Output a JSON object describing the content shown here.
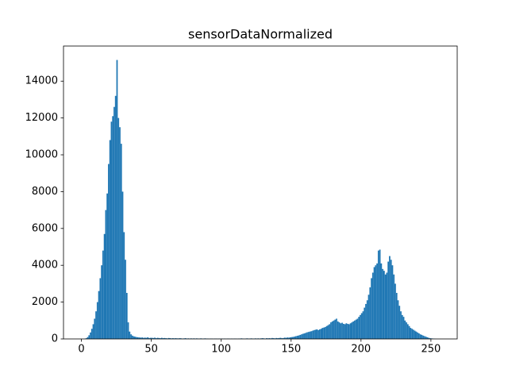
{
  "chart_data": {
    "type": "histogram",
    "title": "sensorDataNormalized",
    "color": "#1f77b4",
    "bins": [
      0,
      1,
      2,
      3,
      4,
      5,
      6,
      7,
      8,
      9,
      10,
      11,
      12,
      13,
      14,
      15,
      16,
      17,
      18,
      19,
      20,
      21,
      22,
      23,
      24,
      25,
      26,
      27,
      28,
      29,
      30,
      31,
      32,
      33,
      34,
      35,
      36,
      37,
      38,
      39,
      40,
      41,
      42,
      43,
      44,
      45,
      46,
      47,
      48,
      49,
      50,
      51,
      52,
      53,
      54,
      55,
      56,
      57,
      58,
      59,
      60,
      61,
      62,
      63,
      64,
      65,
      66,
      67,
      68,
      69,
      70,
      71,
      72,
      73,
      74,
      75,
      76,
      77,
      78,
      79,
      80,
      81,
      82,
      83,
      84,
      85,
      86,
      87,
      88,
      89,
      90,
      91,
      92,
      93,
      94,
      95,
      96,
      97,
      98,
      99,
      100,
      101,
      102,
      103,
      104,
      105,
      106,
      107,
      108,
      109,
      110,
      111,
      112,
      113,
      114,
      115,
      116,
      117,
      118,
      119,
      120,
      121,
      122,
      123,
      124,
      125,
      126,
      127,
      128,
      129,
      130,
      131,
      132,
      133,
      134,
      135,
      136,
      137,
      138,
      139,
      140,
      141,
      142,
      143,
      144,
      145,
      146,
      147,
      148,
      149,
      150,
      151,
      152,
      153,
      154,
      155,
      156,
      157,
      158,
      159,
      160,
      161,
      162,
      163,
      164,
      165,
      166,
      167,
      168,
      169,
      170,
      171,
      172,
      173,
      174,
      175,
      176,
      177,
      178,
      179,
      180,
      181,
      182,
      183,
      184,
      185,
      186,
      187,
      188,
      189,
      190,
      191,
      192,
      193,
      194,
      195,
      196,
      197,
      198,
      199,
      200,
      201,
      202,
      203,
      204,
      205,
      206,
      207,
      208,
      209,
      210,
      211,
      212,
      213,
      214,
      215,
      216,
      217,
      218,
      219,
      220,
      221,
      222,
      223,
      224,
      225,
      226,
      227,
      228,
      229,
      230,
      231,
      232,
      233,
      234,
      235,
      236,
      237,
      238,
      239,
      240,
      241,
      242,
      243,
      244,
      245,
      246,
      247,
      248,
      249,
      250,
      251,
      252,
      253,
      254,
      255,
      256
    ],
    "values": [
      0,
      0,
      10,
      40,
      100,
      200,
      350,
      550,
      800,
      1100,
      1500,
      2000,
      2600,
      3300,
      4000,
      4800,
      5700,
      7000,
      7900,
      9500,
      10800,
      11800,
      12100,
      12600,
      13200,
      15150,
      12000,
      11500,
      10600,
      8000,
      5800,
      4300,
      2500,
      900,
      400,
      250,
      180,
      140,
      120,
      100,
      90,
      80,
      70,
      80,
      60,
      70,
      60,
      90,
      50,
      60,
      60,
      50,
      70,
      40,
      60,
      50,
      40,
      60,
      40,
      50,
      40,
      30,
      50,
      40,
      30,
      40,
      30,
      40,
      30,
      30,
      40,
      30,
      20,
      30,
      40,
      20,
      30,
      20,
      30,
      20,
      30,
      20,
      30,
      20,
      20,
      30,
      20,
      20,
      30,
      20,
      20,
      10,
      20,
      20,
      10,
      20,
      20,
      10,
      20,
      10,
      20,
      10,
      20,
      10,
      20,
      20,
      10,
      20,
      10,
      20,
      20,
      10,
      20,
      20,
      30,
      20,
      10,
      20,
      30,
      20,
      20,
      30,
      20,
      20,
      30,
      20,
      30,
      20,
      30,
      40,
      30,
      20,
      40,
      30,
      40,
      30,
      50,
      40,
      30,
      50,
      40,
      50,
      60,
      40,
      50,
      70,
      60,
      80,
      70,
      90,
      100,
      110,
      130,
      150,
      170,
      190,
      220,
      250,
      280,
      300,
      330,
      360,
      380,
      400,
      420,
      450,
      480,
      500,
      520,
      480,
      520,
      550,
      600,
      620,
      650,
      700,
      750,
      800,
      900,
      950,
      1000,
      1050,
      1100,
      950,
      900,
      850,
      880,
      820,
      800,
      850,
      820,
      800,
      850,
      900,
      950,
      1000,
      1050,
      1100,
      1200,
      1300,
      1400,
      1500,
      1700,
      1900,
      2100,
      2400,
      2800,
      3300,
      3600,
      3900,
      4000,
      4100,
      4800,
      4850,
      4100,
      3800,
      3700,
      3500,
      3600,
      4200,
      4500,
      4300,
      4000,
      3500,
      3000,
      2500,
      2100,
      1800,
      1500,
      1300,
      1200,
      1000,
      900,
      800,
      700,
      600,
      550,
      500,
      450,
      400,
      350,
      300,
      250,
      220,
      180,
      150,
      120,
      90,
      60,
      40,
      30,
      20,
      10,
      5,
      0,
      0
    ],
    "xlim": [
      -12.8,
      268.8
    ],
    "ylim": [
      0,
      15907
    ],
    "xticks": [
      0,
      50,
      100,
      150,
      200,
      250
    ],
    "yticks": [
      0,
      2000,
      4000,
      6000,
      8000,
      10000,
      12000,
      14000
    ]
  }
}
